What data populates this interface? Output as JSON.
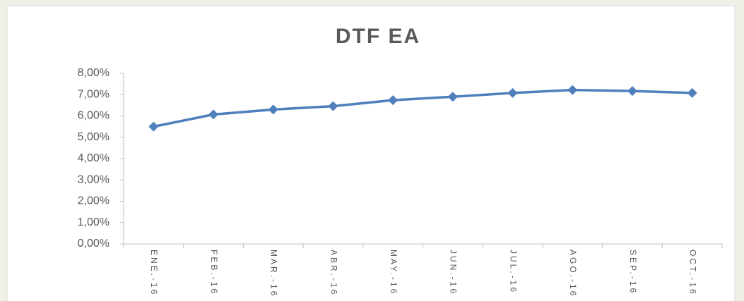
{
  "chart_data": {
    "type": "line",
    "title": "DTF EA",
    "categories": [
      "ENE.-16",
      "FEB.-16",
      "MAR.-16",
      "ABR.-16",
      "MAY.-16",
      "JUN.-16",
      "JUL.-16",
      "AGO.-16",
      "SEP.-16",
      "OCT.-16"
    ],
    "series": [
      {
        "name": "DTF EA",
        "color": "#4f7fbc",
        "values": [
          5.5,
          6.07,
          6.3,
          6.46,
          6.74,
          6.9,
          7.08,
          7.22,
          7.17,
          7.08
        ]
      }
    ],
    "ylim": [
      0,
      8
    ],
    "yticks": [
      {
        "value": 0,
        "label": "0,00%"
      },
      {
        "value": 1,
        "label": "1,00%"
      },
      {
        "value": 2,
        "label": "2,00%"
      },
      {
        "value": 3,
        "label": "3,00%"
      },
      {
        "value": 4,
        "label": "4,00%"
      },
      {
        "value": 5,
        "label": "5,00%"
      },
      {
        "value": 6,
        "label": "6,00%"
      },
      {
        "value": 7,
        "label": "7,00%"
      },
      {
        "value": 8,
        "label": "8,00%"
      }
    ],
    "grid": false
  }
}
